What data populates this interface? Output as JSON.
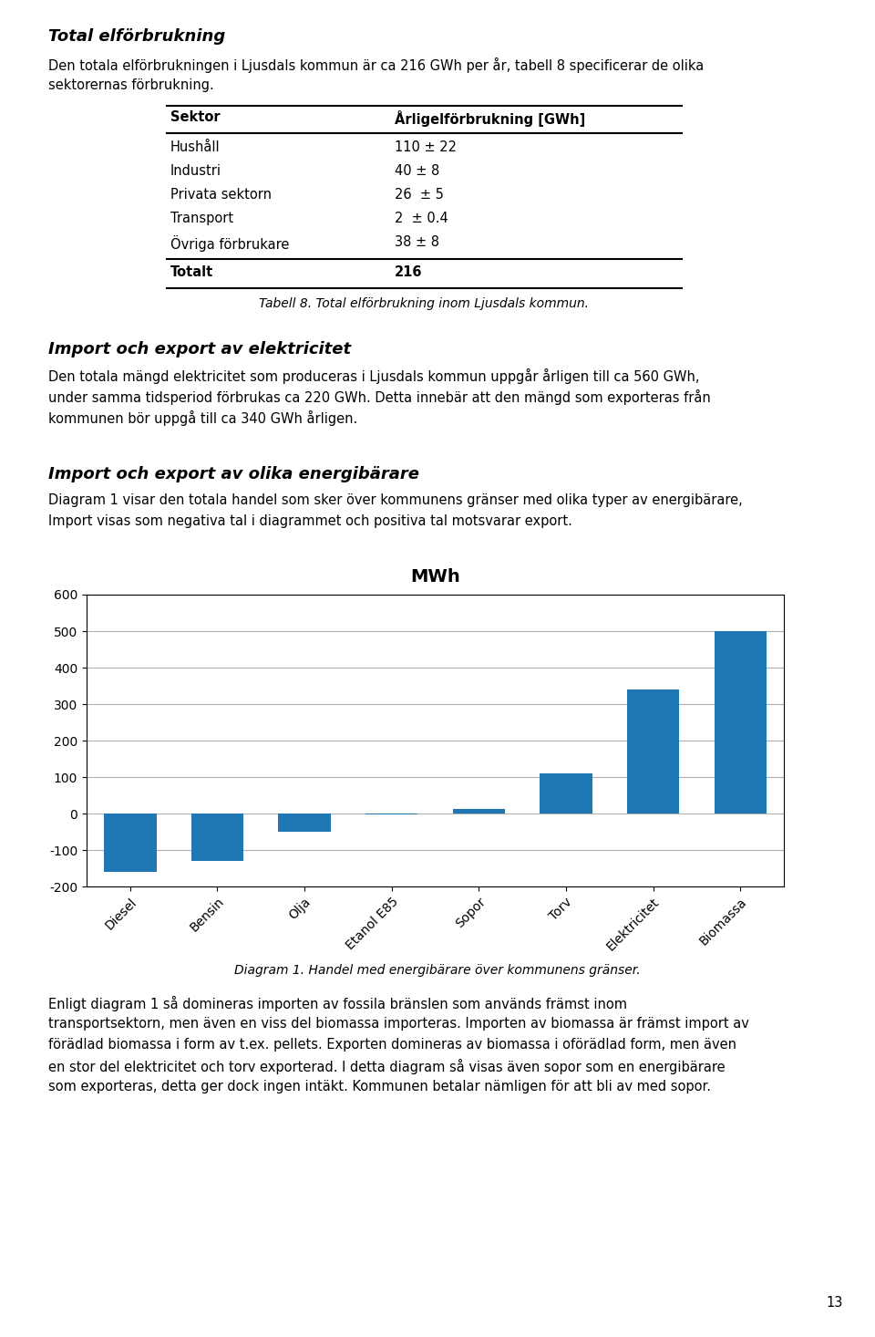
{
  "page_title": "Total elförbrukning",
  "intro_lines": [
    "Den totala elförbrukningen i Ljusdals kommun är ca 216 GWh per år, tabell 8 specificerar de olika",
    "sektorernas förbrukning."
  ],
  "table": {
    "headers": [
      "Sektor",
      "Årligelförbrukning [GWh]"
    ],
    "rows": [
      [
        "Hushåll",
        "110 ± 22"
      ],
      [
        "Industri",
        "40 ± 8"
      ],
      [
        "Privata sektorn",
        "26  ± 5"
      ],
      [
        "Transport",
        "2  ± 0.4"
      ],
      [
        "Övriga förbrukare",
        "38 ± 8"
      ]
    ],
    "total_row": [
      "Totalt",
      "216"
    ],
    "caption": "Tabell 8. Total elförbrukning inom Ljusdals kommun."
  },
  "sections": [
    {
      "title": "Import och export av elektricitet",
      "lines": [
        "Den totala mängd elektricitet som produceras i Ljusdals kommun uppgår årligen till ca 560 GWh,",
        "under samma tidsperiod förbrukas ca 220 GWh. Detta innebär att den mängd som exporteras från",
        "kommunen bör uppgå till ca 340 GWh årligen."
      ]
    },
    {
      "title": "Import och export av olika energibärare",
      "lines": [
        "Diagram 1 visar den totala handel som sker över kommunens gränser med olika typer av energibärare,",
        "Import visas som negativa tal i diagrammet och positiva tal motsvarar export."
      ]
    }
  ],
  "chart_data": {
    "type": "bar",
    "title": "MWh",
    "categories": [
      "Diesel",
      "Bensin",
      "Olja",
      "Etanol E85",
      "Sopor",
      "Torv",
      "Elektricitet",
      "Biomassa"
    ],
    "values": [
      -160,
      -130,
      -50,
      -3,
      12,
      110,
      340,
      500
    ],
    "ylim": [
      -200,
      600
    ],
    "yticks": [
      -200,
      -100,
      0,
      100,
      200,
      300,
      400,
      500,
      600
    ],
    "grid": true
  },
  "chart_caption": "Diagram 1. Handel med energibärare över kommunens gränser.",
  "body_lines": [
    "Enligt diagram 1 så domineras importen av fossila bränslen som används främst inom",
    "transportsektorn, men även en viss del biomassa importeras. Importen av biomassa är främst import av",
    "förädlad biomassa i form av t.ex. pellets. Exporten domineras av biomassa i oförädlad form, men även",
    "en stor del elektricitet och torv exporterad. I detta diagram så visas även sopor som en energibärare",
    "som exporteras, detta ger dock ingen intäkt. Kommunen betalar nämligen för att bli av med sopor."
  ],
  "page_number": "13"
}
